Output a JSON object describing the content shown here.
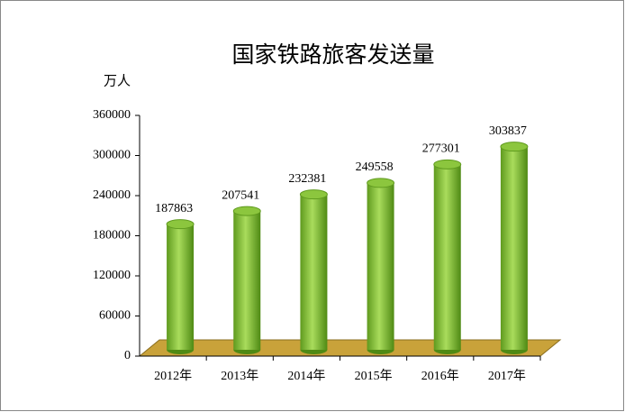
{
  "chart_data": {
    "type": "bar",
    "title": "国家铁路旅客发送量",
    "y_label": "万人",
    "categories": [
      "2012年",
      "2013年",
      "2014年",
      "2015年",
      "2016年",
      "2017年"
    ],
    "values": [
      187863,
      207541,
      232381,
      249558,
      277301,
      303837
    ],
    "color": "#8cc63e",
    "floor_color": "#c9a23a",
    "ylim": [
      0,
      360000
    ],
    "yticks": [
      0,
      60000,
      120000,
      180000,
      240000,
      300000,
      360000
    ]
  }
}
